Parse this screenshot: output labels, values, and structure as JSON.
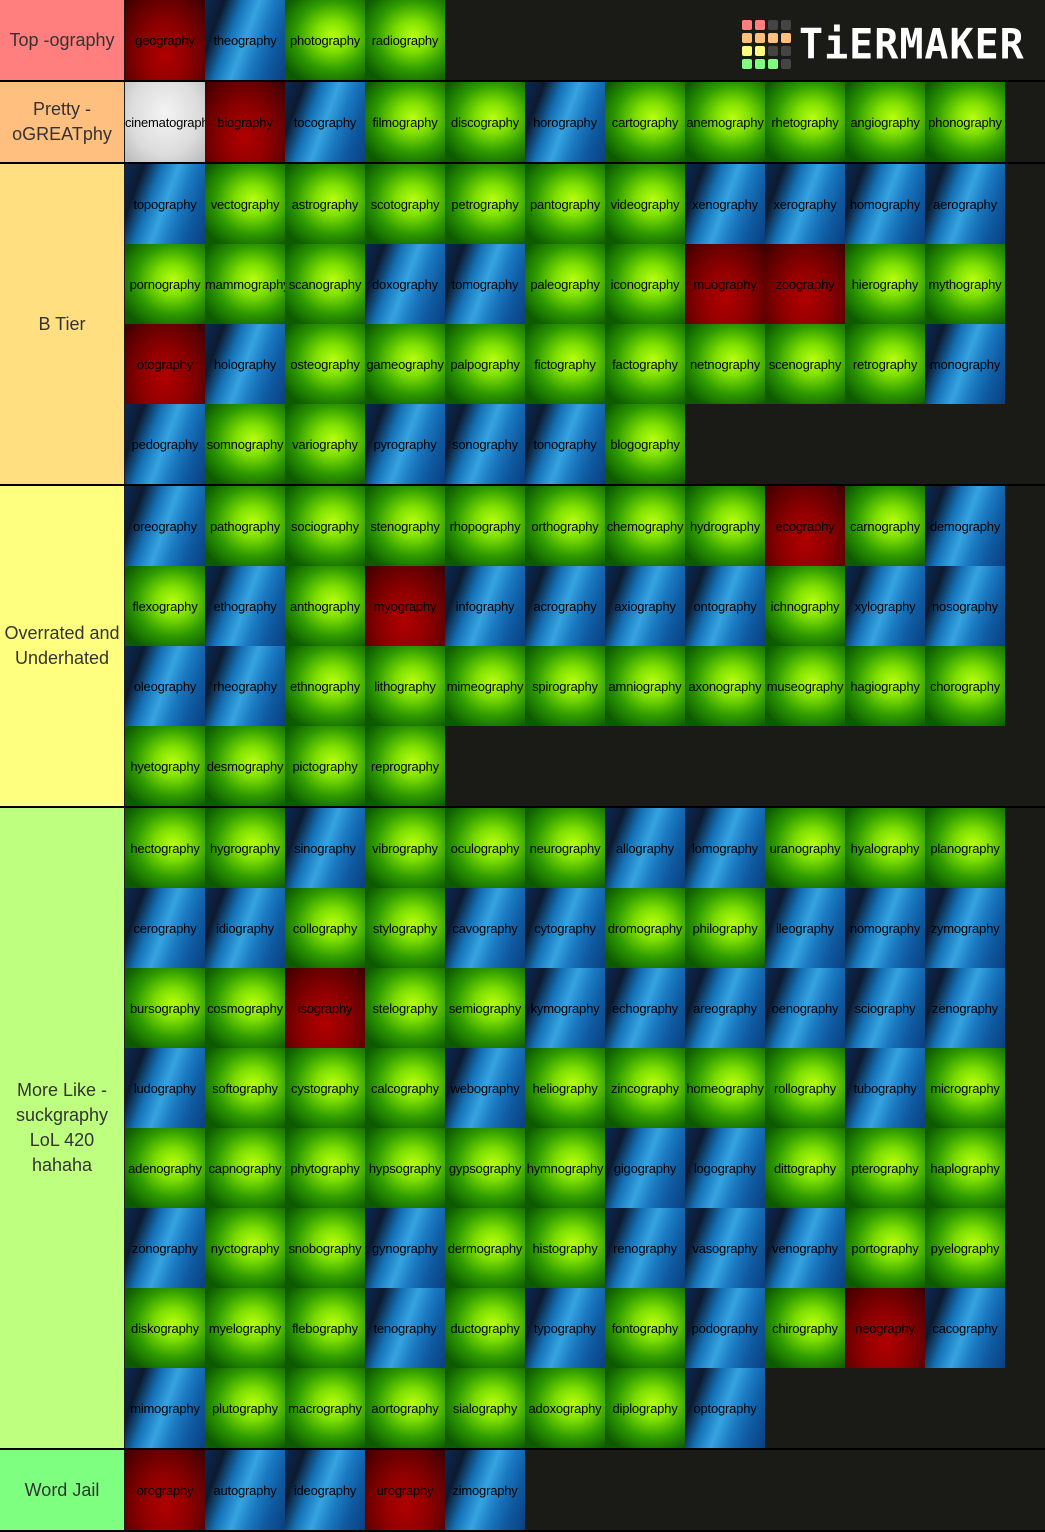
{
  "logo": {
    "text": "TiERMAKER",
    "squares": [
      "#ff7f7f",
      "#ff7f7f",
      "#444",
      "#444",
      "#ffbf7f",
      "#ffbf7f",
      "#ffbf7f",
      "#ffbf7f",
      "#ffff7f",
      "#ffff7f",
      "#444",
      "#444",
      "#7fff7f",
      "#7fff7f",
      "#7fff7f",
      "#444"
    ]
  },
  "tiers": [
    {
      "label": "Top -ography",
      "color": "#ff7f7f",
      "items": [
        [
          "geography",
          "red"
        ],
        [
          "theography",
          "blue"
        ],
        [
          "photography",
          "green"
        ],
        [
          "radiography",
          "green"
        ]
      ]
    },
    {
      "label": "Pretty - oGREATphy",
      "color": "#ffbf7f",
      "items": [
        [
          "cinematography",
          "silver"
        ],
        [
          "biography",
          "red"
        ],
        [
          "tocography",
          "blue"
        ],
        [
          "filmography",
          "green"
        ],
        [
          "discography",
          "green"
        ],
        [
          "horography",
          "blue"
        ],
        [
          "cartography",
          "green"
        ],
        [
          "anemography",
          "green"
        ],
        [
          "rhetography",
          "green"
        ],
        [
          "angiography",
          "green"
        ],
        [
          "phonography",
          "green"
        ]
      ]
    },
    {
      "label": "B Tier",
      "color": "#ffdf7f",
      "items": [
        [
          "topography",
          "blue"
        ],
        [
          "vectography",
          "green"
        ],
        [
          "astrography",
          "green"
        ],
        [
          "scotography",
          "green"
        ],
        [
          "petrography",
          "green"
        ],
        [
          "pantography",
          "green"
        ],
        [
          "videography",
          "green"
        ],
        [
          "xenography",
          "blue"
        ],
        [
          "xerography",
          "blue"
        ],
        [
          "homography",
          "blue"
        ],
        [
          "aerography",
          "blue"
        ],
        [
          "pornography",
          "green"
        ],
        [
          "mammography",
          "green"
        ],
        [
          "scanography",
          "green"
        ],
        [
          "doxography",
          "blue"
        ],
        [
          "tomography",
          "blue"
        ],
        [
          "paleography",
          "green"
        ],
        [
          "iconography",
          "green"
        ],
        [
          "muography",
          "red"
        ],
        [
          "zoography",
          "red"
        ],
        [
          "hierography",
          "green"
        ],
        [
          "mythography",
          "green"
        ],
        [
          "otography",
          "red"
        ],
        [
          "holography",
          "blue"
        ],
        [
          "osteography",
          "green"
        ],
        [
          "gameography",
          "green"
        ],
        [
          "palpography",
          "green"
        ],
        [
          "fictography",
          "green"
        ],
        [
          "factography",
          "green"
        ],
        [
          "netnography",
          "green"
        ],
        [
          "scenography",
          "green"
        ],
        [
          "retrography",
          "green"
        ],
        [
          "monography",
          "blue"
        ],
        [
          "pedography",
          "blue"
        ],
        [
          "somnography",
          "green"
        ],
        [
          "variography",
          "green"
        ],
        [
          "pyrography",
          "blue"
        ],
        [
          "sonography",
          "blue"
        ],
        [
          "tonography",
          "blue"
        ],
        [
          "blogography",
          "green"
        ]
      ]
    },
    {
      "label": "Overrated and Underhated",
      "color": "#ffff7f",
      "items": [
        [
          "oreography",
          "blue"
        ],
        [
          "pathography",
          "green"
        ],
        [
          "sociography",
          "green"
        ],
        [
          "stenography",
          "green"
        ],
        [
          "rhopography",
          "green"
        ],
        [
          "orthography",
          "green"
        ],
        [
          "chemography",
          "green"
        ],
        [
          "hydrography",
          "green"
        ],
        [
          "ecography",
          "red"
        ],
        [
          "carnography",
          "green"
        ],
        [
          "demography",
          "blue"
        ],
        [
          "flexography",
          "green"
        ],
        [
          "ethography",
          "blue"
        ],
        [
          "anthography",
          "green"
        ],
        [
          "myography",
          "red"
        ],
        [
          "infography",
          "blue"
        ],
        [
          "acrography",
          "blue"
        ],
        [
          "axiography",
          "blue"
        ],
        [
          "ontography",
          "blue"
        ],
        [
          "ichnography",
          "green"
        ],
        [
          "xylography",
          "blue"
        ],
        [
          "nosography",
          "blue"
        ],
        [
          "oleography",
          "blue"
        ],
        [
          "rheography",
          "blue"
        ],
        [
          "ethnography",
          "green"
        ],
        [
          "lithography",
          "green"
        ],
        [
          "mimeography",
          "green"
        ],
        [
          "spirography",
          "green"
        ],
        [
          "amniography",
          "green"
        ],
        [
          "axonography",
          "green"
        ],
        [
          "museography",
          "green"
        ],
        [
          "hagiography",
          "green"
        ],
        [
          "chorography",
          "green"
        ],
        [
          "hyetography",
          "green"
        ],
        [
          "desmography",
          "green"
        ],
        [
          "pictography",
          "green"
        ],
        [
          "reprography",
          "green"
        ]
      ]
    },
    {
      "label": "More Like - suckgraphy LoL 420 hahaha",
      "color": "#bfff7f",
      "items": [
        [
          "hectography",
          "green"
        ],
        [
          "hygrography",
          "green"
        ],
        [
          "sinography",
          "blue"
        ],
        [
          "vibrography",
          "green"
        ],
        [
          "oculography",
          "green"
        ],
        [
          "neurography",
          "green"
        ],
        [
          "allography",
          "blue"
        ],
        [
          "lomography",
          "blue"
        ],
        [
          "uranography",
          "green"
        ],
        [
          "hyalography",
          "green"
        ],
        [
          "planography",
          "green"
        ],
        [
          "cerography",
          "blue"
        ],
        [
          "idiography",
          "blue"
        ],
        [
          "collography",
          "green"
        ],
        [
          "stylography",
          "green"
        ],
        [
          "cavography",
          "blue"
        ],
        [
          "cytography",
          "blue"
        ],
        [
          "dromography",
          "green"
        ],
        [
          "philography",
          "green"
        ],
        [
          "ileography",
          "blue"
        ],
        [
          "nomography",
          "blue"
        ],
        [
          "zymography",
          "blue"
        ],
        [
          "bursography",
          "green"
        ],
        [
          "cosmography",
          "green"
        ],
        [
          "isography",
          "red"
        ],
        [
          "stelography",
          "green"
        ],
        [
          "semiography",
          "green"
        ],
        [
          "kymography",
          "blue"
        ],
        [
          "echography",
          "blue"
        ],
        [
          "areography",
          "blue"
        ],
        [
          "oenography",
          "blue"
        ],
        [
          "sciography",
          "blue"
        ],
        [
          "zenography",
          "blue"
        ],
        [
          "ludography",
          "blue"
        ],
        [
          "softography",
          "green"
        ],
        [
          "cystography",
          "green"
        ],
        [
          "calcography",
          "green"
        ],
        [
          "webography",
          "blue"
        ],
        [
          "heliography",
          "green"
        ],
        [
          "zincography",
          "green"
        ],
        [
          "homeography",
          "green"
        ],
        [
          "rollography",
          "green"
        ],
        [
          "tubography",
          "blue"
        ],
        [
          "micrography",
          "green"
        ],
        [
          "adenography",
          "green"
        ],
        [
          "capnography",
          "green"
        ],
        [
          "phytography",
          "green"
        ],
        [
          "hypsography",
          "green"
        ],
        [
          "gypsography",
          "green"
        ],
        [
          "hymnography",
          "green"
        ],
        [
          "gigography",
          "blue"
        ],
        [
          "logography",
          "blue"
        ],
        [
          "dittography",
          "green"
        ],
        [
          "pterography",
          "green"
        ],
        [
          "haplography",
          "green"
        ],
        [
          "zonography",
          "blue"
        ],
        [
          "nyctography",
          "green"
        ],
        [
          "snobography",
          "green"
        ],
        [
          "gynography",
          "blue"
        ],
        [
          "dermography",
          "green"
        ],
        [
          "histography",
          "green"
        ],
        [
          "renography",
          "blue"
        ],
        [
          "vasography",
          "blue"
        ],
        [
          "venography",
          "blue"
        ],
        [
          "portography",
          "green"
        ],
        [
          "pyelography",
          "green"
        ],
        [
          "diskography",
          "green"
        ],
        [
          "myelography",
          "green"
        ],
        [
          "flebography",
          "green"
        ],
        [
          "tenography",
          "blue"
        ],
        [
          "ductography",
          "green"
        ],
        [
          "typography",
          "blue"
        ],
        [
          "fontography",
          "green"
        ],
        [
          "podography",
          "blue"
        ],
        [
          "chirography",
          "green"
        ],
        [
          "neography",
          "red"
        ],
        [
          "cacography",
          "blue"
        ],
        [
          "mimography",
          "blue"
        ],
        [
          "plutography",
          "green"
        ],
        [
          "macrography",
          "green"
        ],
        [
          "aortography",
          "green"
        ],
        [
          "sialography",
          "green"
        ],
        [
          "adoxography",
          "green"
        ],
        [
          "diplography",
          "green"
        ],
        [
          "optography",
          "blue"
        ]
      ]
    },
    {
      "label": "Word Jail",
      "color": "#7fff7f",
      "items": [
        [
          "orography",
          "red"
        ],
        [
          "autography",
          "blue"
        ],
        [
          "ideography",
          "blue"
        ],
        [
          "urography",
          "red"
        ],
        [
          "zimography",
          "blue"
        ]
      ]
    }
  ]
}
